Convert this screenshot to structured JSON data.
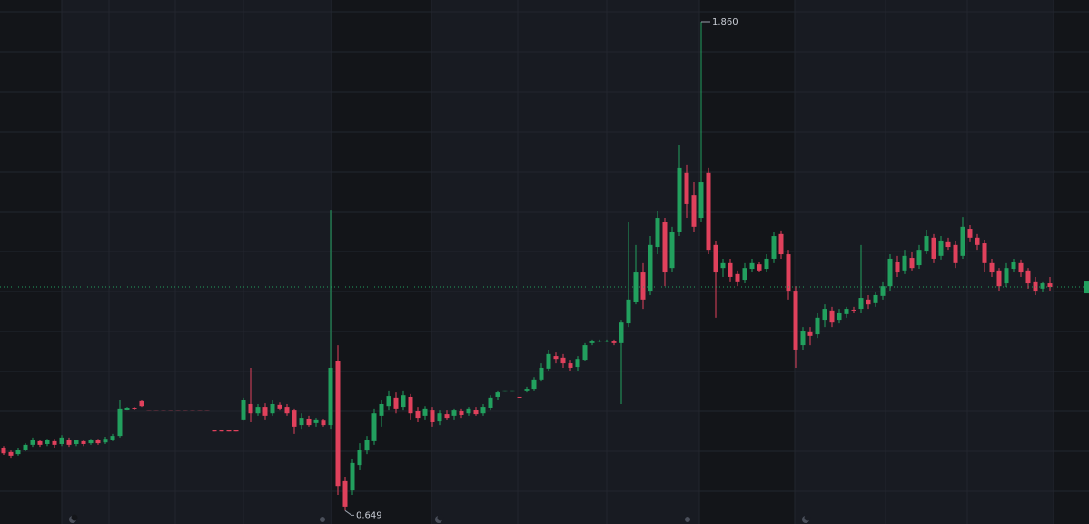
{
  "chart_data": {
    "type": "candlestick",
    "up_color": "#22a05e",
    "down_color": "#e0415c",
    "grid": true,
    "ylim": [
      0.616,
      1.914
    ],
    "open": [
      0.805,
      0.794,
      0.789,
      0.8,
      0.812,
      0.821,
      0.814,
      0.821,
      0.814,
      0.825,
      0.814,
      0.821,
      0.816,
      0.823,
      0.818,
      0.825,
      0.834,
      0.899,
      0.904,
      0.92,
      0.899,
      0.899,
      0.899,
      0.899,
      0.899,
      0.899,
      0.899,
      0.899,
      0.899,
      0.848,
      0.848,
      0.848,
      0.848,
      0.875,
      0.913,
      0.89,
      0.906,
      0.89,
      0.911,
      0.906,
      0.897,
      0.861,
      0.877,
      0.866,
      0.872,
      0.861,
      1.019,
      0.722,
      0.699,
      0.762,
      0.798,
      0.821,
      0.884,
      0.908,
      0.929,
      0.906,
      0.931,
      0.895,
      0.884,
      0.897,
      0.87,
      0.888,
      0.884,
      0.895,
      0.89,
      0.899,
      0.89,
      0.904,
      0.931,
      0.944,
      0.944,
      0.931,
      0.947,
      0.951,
      0.974,
      1.001,
      1.032,
      1.028,
      1.014,
      1.005,
      1.023,
      1.064,
      1.068,
      1.068,
      1.068,
      1.064,
      1.113,
      1.167,
      1.239,
      1.194,
      1.302,
      1.363,
      1.25,
      1.34,
      1.487,
      1.43,
      1.374,
      1.487,
      1.307,
      1.25,
      1.262,
      1.235,
      1.221,
      1.248,
      1.259,
      1.248,
      1.273,
      1.334,
      1.284,
      1.194,
      1.059,
      1.091,
      1.086,
      1.122,
      1.145,
      1.122,
      1.136,
      1.147,
      1.149,
      1.172,
      1.163,
      1.181,
      1.205,
      1.266,
      1.244,
      1.275,
      1.257,
      1.293,
      1.325,
      1.28,
      1.316,
      1.307,
      1.28,
      1.347,
      1.325,
      1.311,
      1.262,
      1.244,
      1.212,
      1.248,
      1.262,
      1.244,
      1.217,
      1.199,
      1.212
    ],
    "high": [
      0.809,
      0.798,
      0.805,
      0.816,
      0.83,
      0.825,
      0.827,
      0.827,
      0.836,
      0.83,
      0.825,
      0.825,
      0.827,
      0.827,
      0.832,
      0.839,
      0.924,
      0.906,
      0.906,
      0.922,
      0.899,
      0.899,
      0.899,
      0.899,
      0.899,
      0.899,
      0.899,
      0.899,
      0.899,
      0.848,
      0.848,
      0.848,
      0.848,
      0.929,
      1.003,
      0.913,
      0.915,
      0.924,
      0.917,
      0.913,
      0.902,
      0.89,
      0.884,
      0.879,
      0.877,
      1.394,
      1.059,
      0.733,
      0.778,
      0.816,
      0.834,
      0.902,
      0.924,
      0.947,
      0.942,
      0.947,
      0.938,
      0.906,
      0.908,
      0.906,
      0.897,
      0.897,
      0.902,
      0.902,
      0.906,
      0.906,
      0.913,
      0.935,
      0.947,
      0.947,
      0.947,
      0.931,
      0.956,
      0.98,
      1.014,
      1.048,
      1.041,
      1.037,
      1.023,
      1.032,
      1.064,
      1.073,
      1.073,
      1.073,
      1.073,
      1.122,
      1.363,
      1.307,
      1.262,
      1.329,
      1.392,
      1.374,
      1.352,
      1.554,
      1.505,
      1.464,
      1.86,
      1.498,
      1.318,
      1.273,
      1.273,
      1.244,
      1.262,
      1.273,
      1.266,
      1.284,
      1.34,
      1.343,
      1.295,
      1.205,
      1.104,
      1.104,
      1.138,
      1.16,
      1.154,
      1.149,
      1.154,
      1.154,
      1.307,
      1.183,
      1.19,
      1.217,
      1.284,
      1.28,
      1.295,
      1.289,
      1.307,
      1.345,
      1.334,
      1.329,
      1.325,
      1.318,
      1.376,
      1.356,
      1.334,
      1.32,
      1.273,
      1.25,
      1.262,
      1.273,
      1.271,
      1.25,
      1.228,
      1.217,
      1.228
    ],
    "low": [
      0.787,
      0.78,
      0.785,
      0.796,
      0.807,
      0.807,
      0.809,
      0.805,
      0.809,
      0.807,
      0.809,
      0.809,
      0.812,
      0.812,
      0.814,
      0.821,
      0.83,
      0.897,
      0.899,
      0.906,
      0.897,
      0.897,
      0.897,
      0.897,
      0.897,
      0.897,
      0.897,
      0.897,
      0.897,
      0.845,
      0.845,
      0.845,
      0.845,
      0.872,
      0.868,
      0.884,
      0.875,
      0.884,
      0.897,
      0.884,
      0.839,
      0.852,
      0.857,
      0.857,
      0.857,
      0.852,
      0.688,
      0.649,
      0.688,
      0.749,
      0.789,
      0.812,
      0.857,
      0.897,
      0.89,
      0.897,
      0.875,
      0.868,
      0.875,
      0.857,
      0.861,
      0.875,
      0.875,
      0.879,
      0.884,
      0.884,
      0.884,
      0.897,
      0.924,
      0.944,
      0.944,
      0.929,
      0.942,
      0.947,
      0.969,
      0.996,
      1.014,
      1.003,
      0.996,
      0.996,
      1.019,
      1.059,
      1.066,
      1.066,
      1.059,
      0.913,
      1.104,
      1.16,
      1.149,
      1.183,
      1.284,
      1.205,
      1.239,
      1.329,
      1.374,
      1.34,
      1.363,
      1.284,
      1.127,
      1.228,
      1.217,
      1.205,
      1.212,
      1.239,
      1.239,
      1.239,
      1.262,
      1.273,
      1.172,
      1.003,
      1.048,
      1.059,
      1.077,
      1.104,
      1.104,
      1.113,
      1.127,
      1.138,
      1.138,
      1.149,
      1.154,
      1.172,
      1.194,
      1.228,
      1.235,
      1.244,
      1.248,
      1.284,
      1.262,
      1.271,
      1.295,
      1.25,
      1.273,
      1.316,
      1.295,
      1.239,
      1.228,
      1.194,
      1.203,
      1.239,
      1.228,
      1.199,
      1.183,
      1.19,
      1.194
    ],
    "close": [
      0.791,
      0.785,
      0.8,
      0.812,
      0.825,
      0.812,
      0.823,
      0.812,
      0.83,
      0.812,
      0.823,
      0.814,
      0.825,
      0.816,
      0.827,
      0.834,
      0.902,
      0.904,
      0.902,
      0.908,
      0.897,
      0.897,
      0.897,
      0.897,
      0.897,
      0.897,
      0.897,
      0.897,
      0.897,
      0.845,
      0.845,
      0.845,
      0.845,
      0.924,
      0.89,
      0.906,
      0.884,
      0.913,
      0.902,
      0.89,
      0.857,
      0.879,
      0.861,
      0.875,
      0.861,
      1.003,
      0.71,
      0.659,
      0.767,
      0.8,
      0.823,
      0.89,
      0.913,
      0.933,
      0.902,
      0.935,
      0.89,
      0.879,
      0.902,
      0.868,
      0.89,
      0.879,
      0.897,
      0.886,
      0.902,
      0.888,
      0.906,
      0.929,
      0.942,
      0.947,
      0.947,
      0.929,
      0.951,
      0.974,
      1.003,
      1.037,
      1.025,
      1.014,
      1.003,
      1.025,
      1.059,
      1.068,
      1.07,
      1.07,
      1.064,
      1.115,
      1.172,
      1.239,
      1.172,
      1.307,
      1.374,
      1.239,
      1.34,
      1.498,
      1.408,
      1.352,
      1.464,
      1.295,
      1.239,
      1.262,
      1.228,
      1.217,
      1.25,
      1.262,
      1.244,
      1.273,
      1.329,
      1.284,
      1.194,
      1.048,
      1.093,
      1.082,
      1.127,
      1.149,
      1.115,
      1.138,
      1.149,
      1.145,
      1.176,
      1.16,
      1.183,
      1.205,
      1.273,
      1.239,
      1.28,
      1.25,
      1.295,
      1.329,
      1.273,
      1.318,
      1.302,
      1.262,
      1.352,
      1.325,
      1.307,
      1.262,
      1.239,
      1.205,
      1.25,
      1.266,
      1.239,
      1.212,
      1.194,
      1.212,
      1.203
    ],
    "annotations": [
      {
        "value": 1.86,
        "label": "1.860"
      },
      {
        "value": 0.649,
        "label": "0.649"
      }
    ]
  }
}
